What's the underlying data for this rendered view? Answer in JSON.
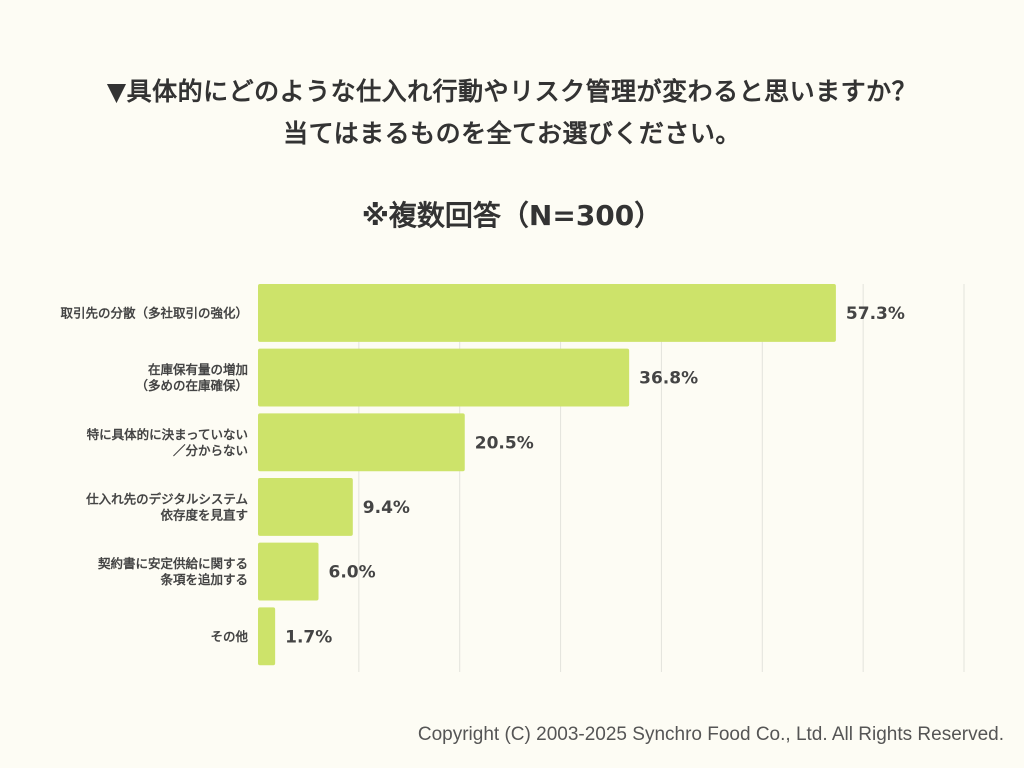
{
  "title": {
    "line1": "▼具体的にどのような仕入れ行動やリスク管理が変わると思いますか？",
    "line2": "当てはまるものを全てお選びください。"
  },
  "subtitle": "※複数回答（N=300）",
  "chart_data": {
    "type": "bar",
    "orientation": "horizontal",
    "categories": [
      [
        "取引先の分散（多社取引の強化）"
      ],
      [
        "在庫保有量の増加",
        "（多めの在庫確保）"
      ],
      [
        "特に具体的に決まっていない",
        "／分からない"
      ],
      [
        "仕入れ先のデジタルシステム",
        "依存度を見直す"
      ],
      [
        "契約書に安定供給に関する",
        "条項を追加する"
      ],
      [
        "その他"
      ]
    ],
    "values": [
      57.3,
      36.8,
      20.5,
      9.4,
      6.0,
      1.7
    ],
    "value_labels": [
      "57.3%",
      "36.8%",
      "20.5%",
      "9.4%",
      "6.0%",
      "1.7%"
    ],
    "xlim": [
      0,
      70
    ],
    "grid": true,
    "bar_color": "#cde36a",
    "grid_color": "#e3e3dc"
  },
  "copyright": "Copyright (C) 2003-2025  Synchro Food Co., Ltd. All Rights Reserved."
}
